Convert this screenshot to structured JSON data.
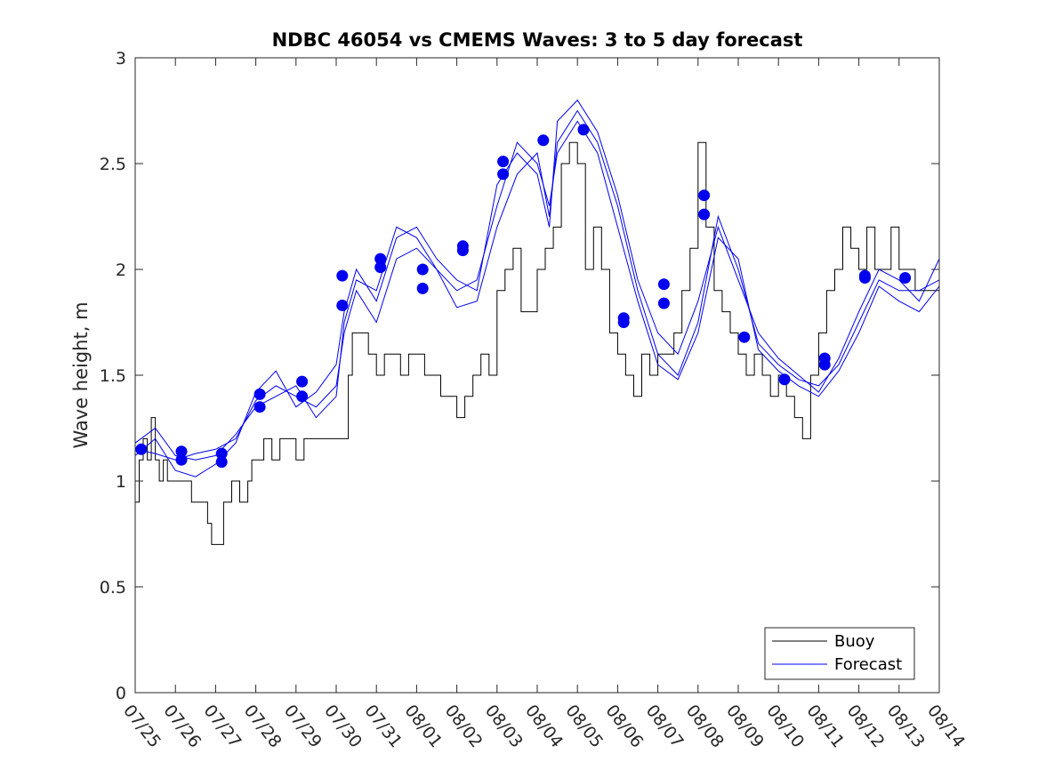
{
  "chart_data": {
    "type": "line",
    "title": "NDBC 46054 vs CMEMS Waves: 3 to 5 day forecast",
    "xlabel": "",
    "ylabel": "Wave height, m",
    "x_ticks": [
      "07/25",
      "07/26",
      "07/27",
      "07/28",
      "07/29",
      "07/30",
      "07/31",
      "08/01",
      "08/02",
      "08/03",
      "08/04",
      "08/05",
      "08/06",
      "08/07",
      "08/08",
      "08/09",
      "08/10",
      "08/11",
      "08/12",
      "08/13",
      "08/14"
    ],
    "x_range_days": [
      0,
      20
    ],
    "ylim": [
      0,
      3
    ],
    "y_ticks": [
      0,
      0.5,
      1,
      1.5,
      2,
      2.5,
      3
    ],
    "y_tick_labels": [
      "0",
      "0.5",
      "1",
      "1.5",
      "2",
      "2.5",
      "3"
    ],
    "grid": false,
    "legend": {
      "position": "bottom-right",
      "entries": [
        {
          "label": "Buoy",
          "color": "#000000"
        },
        {
          "label": "Forecast",
          "color": "#0000ee"
        }
      ]
    },
    "colors": {
      "buoy": "#000000",
      "forecast": "#0000ee",
      "marker": "#0000ee"
    },
    "series": [
      {
        "name": "Buoy",
        "step": true,
        "x": [
          0.0,
          0.1,
          0.2,
          0.3,
          0.4,
          0.5,
          0.6,
          0.7,
          0.8,
          1.0,
          1.2,
          1.4,
          1.6,
          1.8,
          1.9,
          2.0,
          2.2,
          2.4,
          2.6,
          2.8,
          2.9,
          3.0,
          3.2,
          3.4,
          3.6,
          3.8,
          4.0,
          4.2,
          4.4,
          4.6,
          4.8,
          5.0,
          5.2,
          5.3,
          5.4,
          5.6,
          5.8,
          6.0,
          6.2,
          6.4,
          6.6,
          6.8,
          7.0,
          7.2,
          7.4,
          7.6,
          7.8,
          8.0,
          8.2,
          8.4,
          8.6,
          8.8,
          9.0,
          9.2,
          9.4,
          9.6,
          9.8,
          10.0,
          10.2,
          10.4,
          10.6,
          10.8,
          11.0,
          11.2,
          11.4,
          11.6,
          11.8,
          12.0,
          12.2,
          12.4,
          12.6,
          12.8,
          13.0,
          13.2,
          13.4,
          13.6,
          13.8,
          14.0,
          14.2,
          14.4,
          14.6,
          14.8,
          15.0,
          15.2,
          15.4,
          15.6,
          15.8,
          16.0,
          16.2,
          16.4,
          16.6,
          16.8,
          17.0,
          17.2,
          17.4,
          17.6,
          17.8,
          18.0,
          18.2,
          18.4,
          18.6,
          18.8,
          19.0,
          19.2,
          19.4,
          19.6,
          19.8,
          20.0
        ],
        "values": [
          0.9,
          1.1,
          1.2,
          1.1,
          1.3,
          1.1,
          1.0,
          1.1,
          1.0,
          1.0,
          1.0,
          0.9,
          0.9,
          0.8,
          0.7,
          0.7,
          0.9,
          1.0,
          0.9,
          1.0,
          1.1,
          1.1,
          1.2,
          1.1,
          1.2,
          1.2,
          1.1,
          1.2,
          1.2,
          1.2,
          1.2,
          1.2,
          1.2,
          1.5,
          1.7,
          1.7,
          1.6,
          1.5,
          1.6,
          1.6,
          1.5,
          1.6,
          1.6,
          1.5,
          1.5,
          1.4,
          1.4,
          1.3,
          1.4,
          1.5,
          1.6,
          1.5,
          1.9,
          2.0,
          2.1,
          1.8,
          1.8,
          2.0,
          2.1,
          2.2,
          2.5,
          2.6,
          2.5,
          2.0,
          2.2,
          2.0,
          1.7,
          1.6,
          1.5,
          1.4,
          1.6,
          1.5,
          1.6,
          1.6,
          1.7,
          1.9,
          2.1,
          2.6,
          2.2,
          1.9,
          1.8,
          1.7,
          1.6,
          1.5,
          1.6,
          1.5,
          1.4,
          1.5,
          1.4,
          1.3,
          1.2,
          1.5,
          1.7,
          1.9,
          2.0,
          2.2,
          2.1,
          2.0,
          2.2,
          2.0,
          2.0,
          2.2,
          2.0,
          2.0,
          1.9,
          1.9,
          1.9,
          2.0
        ]
      },
      {
        "name": "Forecast",
        "x": [
          0.0,
          0.5,
          1.0,
          1.5,
          2.0,
          2.5,
          3.0,
          3.5,
          4.0,
          4.5,
          5.0,
          5.2,
          5.5,
          6.0,
          6.5,
          7.0,
          7.5,
          8.0,
          8.5,
          9.0,
          9.5,
          10.0,
          10.3,
          10.5,
          11.0,
          11.5,
          12.0,
          12.5,
          13.0,
          13.5,
          14.0,
          14.5,
          15.0,
          15.5,
          16.0,
          16.5,
          17.0,
          17.5,
          18.0,
          18.5,
          19.0,
          19.5,
          20.0
        ],
        "values": [
          1.15,
          1.13,
          1.1,
          1.13,
          1.15,
          1.2,
          1.38,
          1.45,
          1.4,
          1.35,
          1.45,
          1.7,
          1.9,
          1.75,
          2.05,
          2.1,
          2.0,
          1.82,
          1.85,
          2.2,
          2.45,
          2.55,
          2.25,
          2.6,
          2.75,
          2.6,
          2.3,
          1.9,
          1.6,
          1.5,
          1.75,
          2.25,
          2.0,
          1.65,
          1.55,
          1.48,
          1.45,
          1.55,
          1.75,
          1.95,
          1.9,
          1.9,
          1.95
        ]
      },
      {
        "name": "Forecast",
        "x": [
          0.0,
          0.5,
          1.0,
          1.5,
          2.0,
          2.5,
          3.0,
          3.5,
          4.0,
          4.5,
          5.0,
          5.2,
          5.5,
          6.0,
          6.5,
          7.0,
          7.5,
          8.0,
          8.5,
          9.0,
          9.5,
          10.0,
          10.3,
          10.5,
          11.0,
          11.5,
          12.0,
          12.5,
          13.0,
          13.5,
          14.0,
          14.5,
          15.0,
          15.5,
          16.0,
          16.5,
          17.0,
          17.5,
          18.0,
          18.5,
          19.0,
          19.5,
          20.0
        ],
        "values": [
          1.12,
          1.2,
          1.05,
          1.02,
          1.08,
          1.18,
          1.42,
          1.52,
          1.35,
          1.42,
          1.55,
          1.8,
          2.0,
          1.85,
          2.15,
          2.2,
          2.05,
          1.95,
          1.9,
          2.4,
          2.55,
          2.45,
          2.2,
          2.7,
          2.8,
          2.65,
          2.35,
          1.95,
          1.7,
          1.6,
          1.85,
          2.2,
          1.95,
          1.7,
          1.58,
          1.5,
          1.42,
          1.58,
          1.8,
          2.0,
          1.95,
          1.85,
          2.05
        ]
      },
      {
        "name": "Forecast",
        "x": [
          0.0,
          0.5,
          1.0,
          1.5,
          2.0,
          2.5,
          3.0,
          3.5,
          4.0,
          4.5,
          5.0,
          5.2,
          5.5,
          6.0,
          6.5,
          7.0,
          7.5,
          8.0,
          8.5,
          9.0,
          9.5,
          10.0,
          10.3,
          10.5,
          11.0,
          11.5,
          12.0,
          12.5,
          13.0,
          13.5,
          14.0,
          14.5,
          15.0,
          15.5,
          16.0,
          16.5,
          17.0,
          17.5,
          18.0,
          18.5,
          19.0,
          19.5,
          20.0
        ],
        "values": [
          1.18,
          1.25,
          1.12,
          1.1,
          1.12,
          1.22,
          1.35,
          1.4,
          1.45,
          1.3,
          1.4,
          1.75,
          1.95,
          1.9,
          2.2,
          2.15,
          2.0,
          1.9,
          1.95,
          2.3,
          2.6,
          2.5,
          2.3,
          2.55,
          2.7,
          2.55,
          2.2,
          1.85,
          1.55,
          1.48,
          1.7,
          2.15,
          2.05,
          1.62,
          1.52,
          1.45,
          1.4,
          1.52,
          1.7,
          1.92,
          1.85,
          1.8,
          1.92
        ]
      }
    ],
    "markers": {
      "name": "Forecast",
      "x": [
        0.15,
        1.15,
        1.15,
        2.15,
        2.15,
        3.1,
        3.1,
        4.15,
        4.15,
        5.15,
        5.15,
        6.1,
        6.1,
        7.15,
        7.15,
        8.15,
        8.15,
        9.15,
        9.15,
        10.15,
        11.15,
        12.15,
        12.15,
        13.15,
        13.15,
        14.15,
        14.15,
        15.15,
        16.15,
        17.15,
        17.15,
        18.15,
        18.15,
        19.15
      ],
      "values": [
        1.15,
        1.14,
        1.1,
        1.13,
        1.09,
        1.41,
        1.35,
        1.47,
        1.4,
        1.97,
        1.83,
        2.05,
        2.01,
        2.0,
        1.91,
        2.11,
        2.09,
        2.51,
        2.45,
        2.61,
        2.66,
        1.77,
        1.75,
        1.93,
        1.84,
        2.35,
        2.26,
        1.68,
        1.48,
        1.58,
        1.55,
        1.97,
        1.96,
        1.96
      ]
    }
  }
}
